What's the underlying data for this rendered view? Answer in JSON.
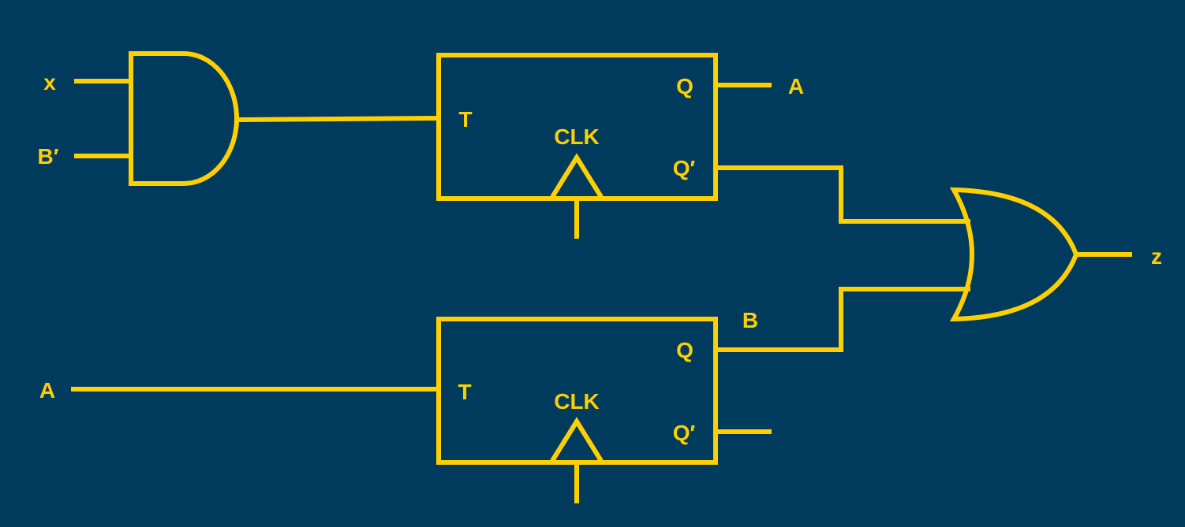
{
  "colors": {
    "background": "#003a5c",
    "stroke": "#ffd000",
    "label": "#ffd000"
  },
  "inputs": {
    "x": "x",
    "b_prime": "B′",
    "a": "A"
  },
  "flip_flop_a": {
    "t_label": "T",
    "clk_label": "CLK",
    "q_label": "Q",
    "q_prime_label": "Q′",
    "output_label": "A"
  },
  "flip_flop_b": {
    "t_label": "T",
    "clk_label": "CLK",
    "q_label": "Q",
    "q_prime_label": "Q′",
    "output_label": "B"
  },
  "output": {
    "z": "z"
  }
}
